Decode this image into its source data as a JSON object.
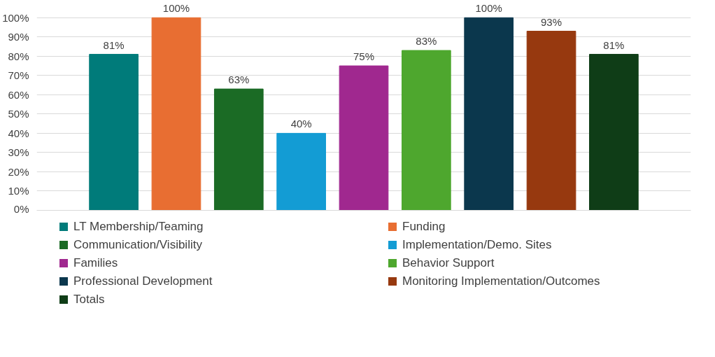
{
  "chart_data": {
    "type": "bar",
    "categories": [
      null
    ],
    "ylim": [
      0,
      100
    ],
    "yticks": [
      {
        "value": 0,
        "label": "0%"
      },
      {
        "value": 10,
        "label": "10%"
      },
      {
        "value": 20,
        "label": "20%"
      },
      {
        "value": 30,
        "label": "30%"
      },
      {
        "value": 40,
        "label": "40%"
      },
      {
        "value": 50,
        "label": "50%"
      },
      {
        "value": 60,
        "label": "60%"
      },
      {
        "value": 70,
        "label": "70%"
      },
      {
        "value": 80,
        "label": "80%"
      },
      {
        "value": 90,
        "label": "90%"
      },
      {
        "value": 100,
        "label": "100%"
      }
    ],
    "grid": "y",
    "legend": "bottom",
    "tick_labels": "y",
    "series": [
      {
        "name": "LT Membership/Teaming",
        "color": "#007b7a",
        "values": [
          81
        ],
        "value_labels": [
          "81%"
        ]
      },
      {
        "name": "Funding",
        "color": "#e86e32",
        "values": [
          100
        ],
        "value_labels": [
          "100%"
        ]
      },
      {
        "name": "Communication/Visibility",
        "color": "#1b6b25",
        "values": [
          63
        ],
        "value_labels": [
          "63%"
        ]
      },
      {
        "name": "Implementation/Demo. Sites",
        "color": "#139cd4",
        "values": [
          40
        ],
        "value_labels": [
          "40%"
        ]
      },
      {
        "name": "Families",
        "color": "#a0288f",
        "values": [
          75
        ],
        "value_labels": [
          "75%"
        ]
      },
      {
        "name": "Behavior Support",
        "color": "#4ea72e",
        "values": [
          83
        ],
        "value_labels": [
          "83%"
        ]
      },
      {
        "name": "Professional Development",
        "color": "#0b374d",
        "values": [
          100
        ],
        "value_labels": [
          "100%"
        ]
      },
      {
        "name": "Monitoring Implementation/Outcomes",
        "color": "#97390f",
        "values": [
          93
        ],
        "value_labels": [
          "93%"
        ]
      },
      {
        "name": "Totals",
        "color": "#0f3d17",
        "values": [
          81
        ],
        "value_labels": [
          "81%"
        ]
      }
    ]
  }
}
